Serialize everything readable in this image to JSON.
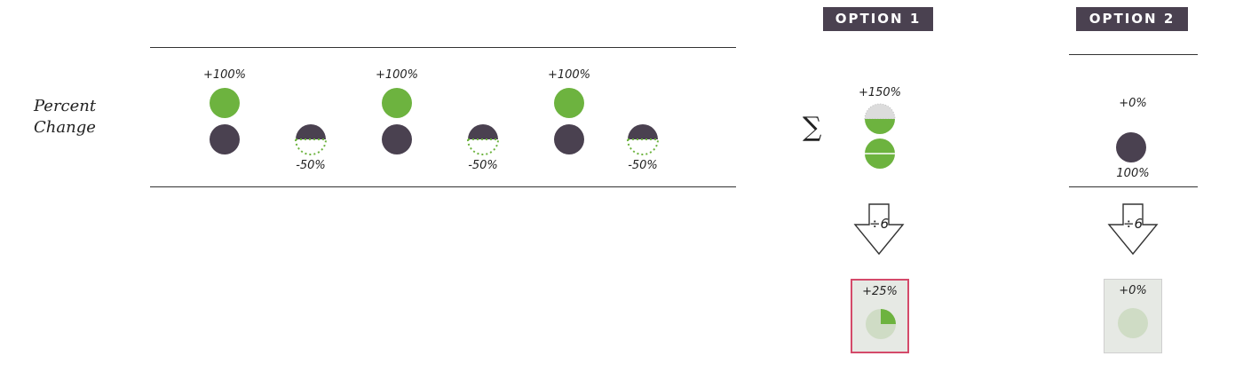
{
  "row_label": "Percent Change",
  "sequence": {
    "up_label": "+100%",
    "down_label": "-50%"
  },
  "sum_symbol": "∑",
  "option1": {
    "header": "OPTION 1",
    "sum_label": "+150%",
    "divide_label": "÷6",
    "result_label": "+25%",
    "result_fraction": 0.25
  },
  "option2": {
    "header": "OPTION 2",
    "sum_label": "+0%",
    "base_label": "100%",
    "divide_label": "÷6",
    "result_label": "+0%",
    "result_fraction": 0
  },
  "colors": {
    "green": "#6db33f",
    "dark": "#4a4150",
    "light_green": "#cfdcc5",
    "highlight_border": "#d44a6a"
  }
}
